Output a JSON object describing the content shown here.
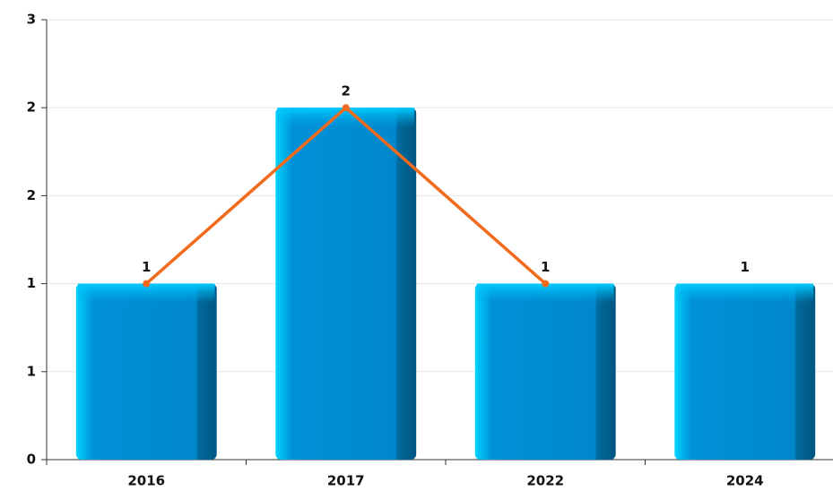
{
  "chart_data": {
    "type": "bar",
    "categories": [
      "2016",
      "2017",
      "2022",
      "2024"
    ],
    "series": [
      {
        "type": "bar",
        "color": "#0088cc",
        "values": [
          1,
          2,
          1,
          1
        ]
      },
      {
        "type": "line",
        "color": "#f26a1b",
        "values": [
          1,
          2,
          1,
          null
        ]
      }
    ],
    "ylim": [
      0,
      2.5
    ],
    "yticks": [
      {
        "value": 0,
        "label": "0"
      },
      {
        "value": 0.5,
        "label": "1"
      },
      {
        "value": 1,
        "label": "1"
      },
      {
        "value": 1.5,
        "label": "2"
      },
      {
        "value": 2,
        "label": "2"
      },
      {
        "value": 2.5,
        "label": "3"
      }
    ],
    "grid": true
  }
}
